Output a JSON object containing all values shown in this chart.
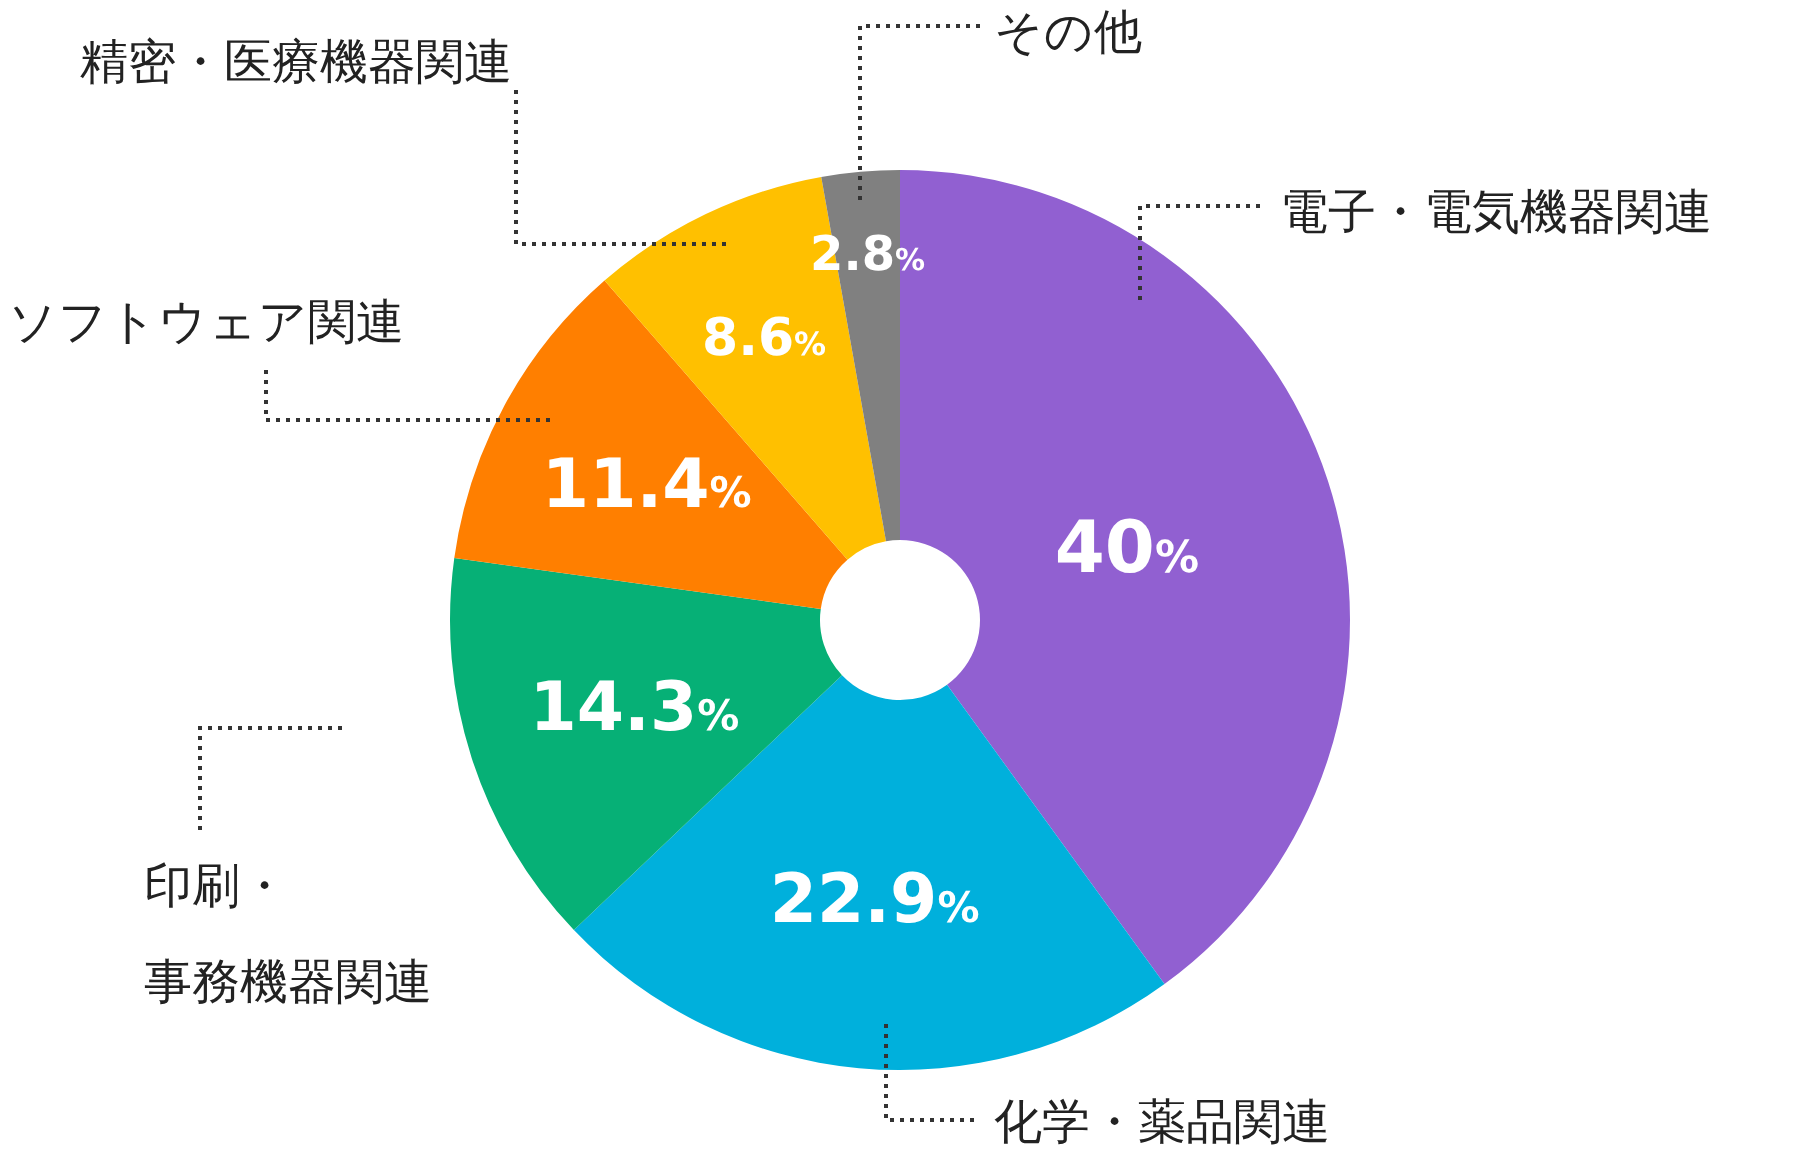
{
  "chart_data": {
    "type": "donut",
    "categories": [
      "電子・電気機器関連",
      "化学・薬品関連",
      "印刷・事務機器関連",
      "ソフトウェア関連",
      "精密・医療機器関連",
      "その他"
    ],
    "values": [
      40,
      22.9,
      14.3,
      11.4,
      8.6,
      2.8
    ],
    "colors": [
      "#9160d1",
      "#00b0dc",
      "#06b076",
      "#ff7f00",
      "#ffc000",
      "#808080"
    ],
    "value_labels": [
      "40%",
      "22.9%",
      "14.3%",
      "11.4%",
      "8.6%",
      "2.8%"
    ]
  }
}
